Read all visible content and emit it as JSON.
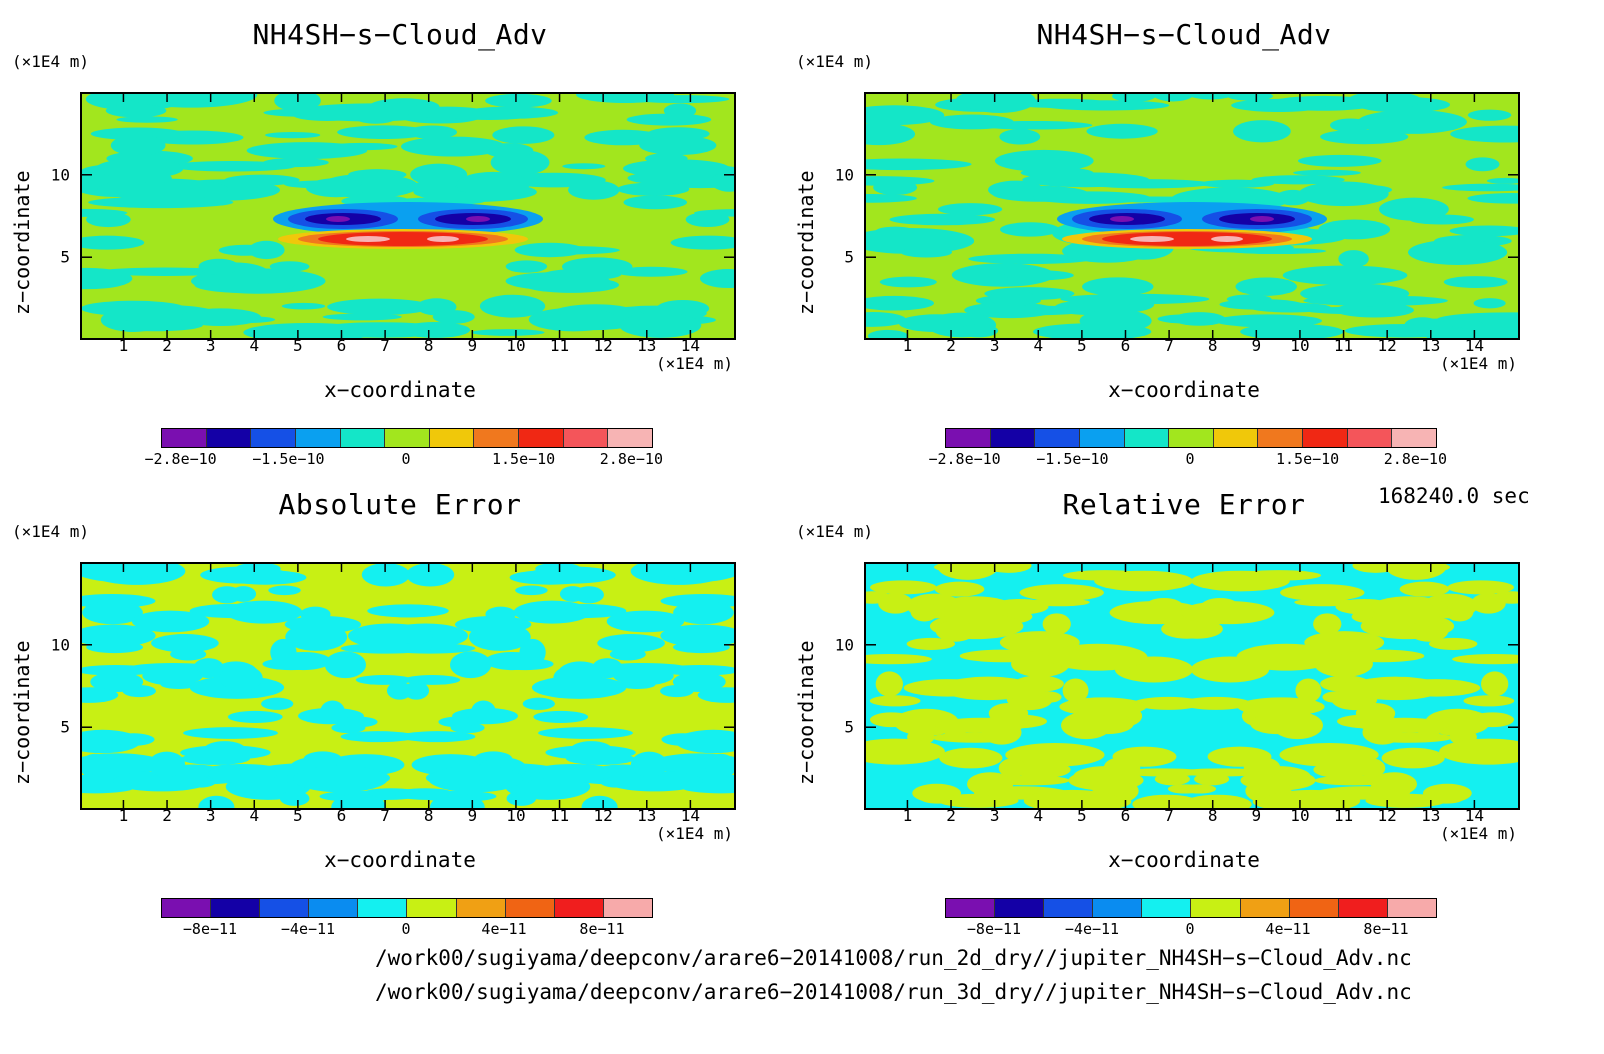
{
  "panels": [
    {
      "title": "NH4SH−s−Cloud_Adv",
      "y_unit": "(×1E4 m)",
      "x_unit": "(×1E4 m)",
      "xlabel": "x−coordinate",
      "ylabel": "z−coordinate",
      "cbar_labels": [
        "−2.8e−10",
        "−1.5e−10",
        "0",
        "1.5e−10",
        "2.8e−10"
      ],
      "cbar_colors": [
        "#7a0fb0",
        "#1400a6",
        "#1550e6",
        "#0aa0f0",
        "#14e6c8",
        "#a2e61e",
        "#f0c80a",
        "#f0781e",
        "#f02814",
        "#f4555a",
        "#f7b4b4"
      ],
      "palette": "main"
    },
    {
      "title": "NH4SH−s−Cloud_Adv",
      "y_unit": "(×1E4 m)",
      "x_unit": "(×1E4 m)",
      "xlabel": "x−coordinate",
      "ylabel": "z−coordinate",
      "cbar_labels": [
        "−2.8e−10",
        "−1.5e−10",
        "0",
        "1.5e−10",
        "2.8e−10"
      ],
      "cbar_colors": [
        "#7a0fb0",
        "#1400a6",
        "#1550e6",
        "#0aa0f0",
        "#14e6c8",
        "#a2e61e",
        "#f0c80a",
        "#f0781e",
        "#f02814",
        "#f4555a",
        "#f7b4b4"
      ],
      "palette": "main"
    },
    {
      "title": "Absolute Error",
      "y_unit": "(×1E4 m)",
      "x_unit": "(×1E4 m)",
      "xlabel": "x−coordinate",
      "ylabel": "z−coordinate",
      "cbar_labels": [
        "−8e−11",
        "−4e−11",
        "0",
        "4e−11",
        "8e−11"
      ],
      "cbar_colors": [
        "#7a0fb0",
        "#1400a6",
        "#1550e6",
        "#0a8cf0",
        "#14f0f0",
        "#c8f014",
        "#f0a014",
        "#f06414",
        "#f01e1e",
        "#f7aaaa"
      ],
      "palette": "err"
    },
    {
      "title": "Relative Error",
      "y_unit": "(×1E4 m)",
      "x_unit": "(×1E4 m)",
      "xlabel": "x−coordinate",
      "ylabel": "z−coordinate",
      "cbar_labels": [
        "−8e−11",
        "−4e−11",
        "0",
        "4e−11",
        "8e−11"
      ],
      "cbar_colors": [
        "#7a0fb0",
        "#1400a6",
        "#1550e6",
        "#0a8cf0",
        "#14f0f0",
        "#c8f014",
        "#f0a014",
        "#f06414",
        "#f01e1e",
        "#f7aaaa"
      ],
      "palette": "err"
    }
  ],
  "time_label": "168240.0 sec",
  "file_paths": [
    "/work00/sugiyama/deepconv/arare6−20141008/run_2d_dry//jupiter_NH4SH−s−Cloud_Adv.nc",
    "/work00/sugiyama/deepconv/arare6−20141008/run_3d_dry//jupiter_NH4SH−s−Cloud_Adv.nc"
  ],
  "chart_data": [
    {
      "type": "heatmap",
      "title": "NH4SH−s−Cloud_Adv",
      "xlabel": "x−coordinate",
      "ylabel": "z−coordinate",
      "x_unit": "(×1E4 m)",
      "y_unit": "(×1E4 m)",
      "x_ticks": [
        1,
        2,
        3,
        4,
        5,
        6,
        7,
        8,
        9,
        10,
        11,
        12,
        13,
        14
      ],
      "y_ticks": [
        5,
        10
      ],
      "xlim": [
        0.05,
        15
      ],
      "ylim": [
        0.1,
        14.9
      ],
      "colorbar_labels": [
        "−2.8e−10",
        "−1.5e−10",
        "0",
        "1.5e−10",
        "2.8e−10"
      ]
    },
    {
      "type": "heatmap",
      "title": "NH4SH−s−Cloud_Adv",
      "xlabel": "x−coordinate",
      "ylabel": "z−coordinate",
      "x_unit": "(×1E4 m)",
      "y_unit": "(×1E4 m)",
      "x_ticks": [
        1,
        2,
        3,
        4,
        5,
        6,
        7,
        8,
        9,
        10,
        11,
        12,
        13,
        14
      ],
      "y_ticks": [
        5,
        10
      ],
      "xlim": [
        0.05,
        15
      ],
      "ylim": [
        0.1,
        14.9
      ],
      "colorbar_labels": [
        "−2.8e−10",
        "−1.5e−10",
        "0",
        "1.5e−10",
        "2.8e−10"
      ]
    },
    {
      "type": "heatmap",
      "title": "Absolute Error",
      "xlabel": "x−coordinate",
      "ylabel": "z−coordinate",
      "x_unit": "(×1E4 m)",
      "y_unit": "(×1E4 m)",
      "x_ticks": [
        1,
        2,
        3,
        4,
        5,
        6,
        7,
        8,
        9,
        10,
        11,
        12,
        13,
        14
      ],
      "y_ticks": [
        5,
        10
      ],
      "xlim": [
        0.05,
        15
      ],
      "ylim": [
        0.1,
        14.9
      ],
      "colorbar_labels": [
        "−8e−11",
        "−4e−11",
        "0",
        "4e−11",
        "8e−11"
      ]
    },
    {
      "type": "heatmap",
      "title": "Relative Error",
      "xlabel": "x−coordinate",
      "ylabel": "z−coordinate",
      "x_unit": "(×1E4 m)",
      "y_unit": "(×1E4 m)",
      "x_ticks": [
        1,
        2,
        3,
        4,
        5,
        6,
        7,
        8,
        9,
        10,
        11,
        12,
        13,
        14
      ],
      "y_ticks": [
        5,
        10
      ],
      "xlim": [
        0.05,
        15
      ],
      "ylim": [
        0.1,
        14.9
      ],
      "colorbar_labels": [
        "−8e−11",
        "−4e−11",
        "0",
        "4e−11",
        "8e−11"
      ]
    }
  ]
}
